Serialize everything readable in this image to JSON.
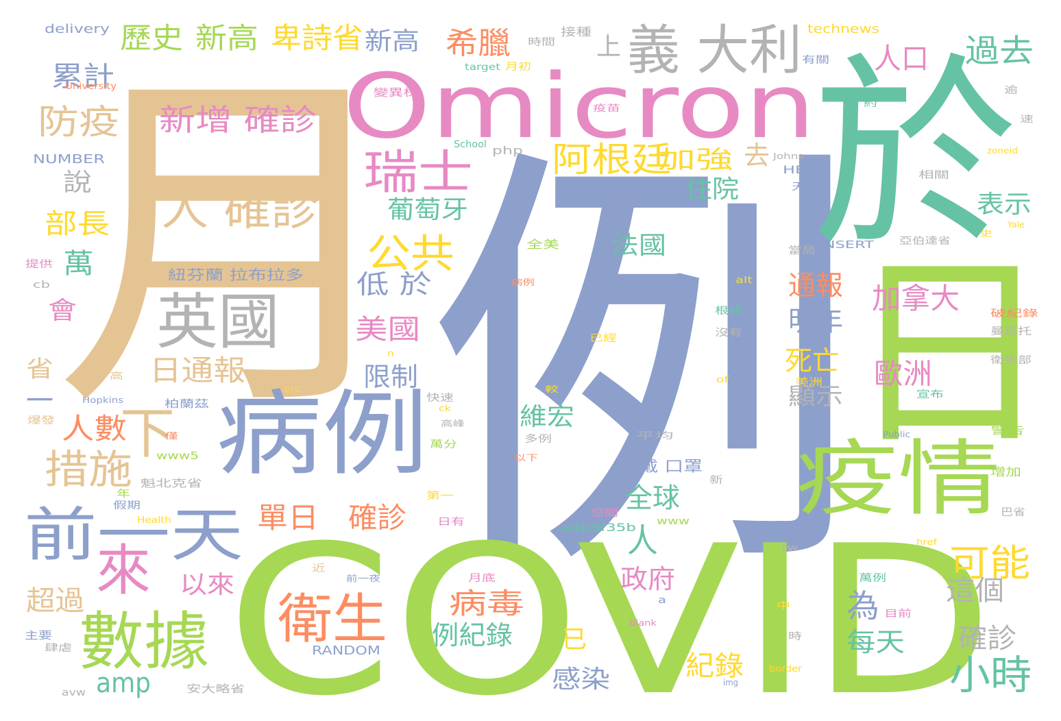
{
  "palette": {
    "blue": "#8da0cb",
    "green": "#a6d854",
    "tan": "#e5c494",
    "teal": "#66c2a5",
    "pink": "#e78ac3",
    "orange": "#fc8d62",
    "yellow": "#ffd92f",
    "gray": "#b3b3b3"
  },
  "words": [
    {
      "text": "例",
      "color": "blue"
    },
    {
      "text": "月",
      "color": "tan"
    },
    {
      "text": "COVID",
      "color": "green"
    },
    {
      "text": "於",
      "color": "teal"
    },
    {
      "text": "日",
      "color": "green"
    },
    {
      "text": "Omicron",
      "color": "pink"
    },
    {
      "text": "病例",
      "color": "blue"
    },
    {
      "text": "疫情",
      "color": "green"
    },
    {
      "text": "義 大利",
      "color": "gray"
    },
    {
      "text": "英國",
      "color": "gray"
    },
    {
      "text": "數據",
      "color": "green"
    },
    {
      "text": "衛生",
      "color": "orange"
    },
    {
      "text": "前一天",
      "color": "blue"
    },
    {
      "text": "來",
      "color": "pink"
    },
    {
      "text": "人 確診",
      "color": "tan"
    },
    {
      "text": "瑞士",
      "color": "pink"
    },
    {
      "text": "下",
      "color": "tan"
    },
    {
      "text": "措施",
      "color": "tan"
    },
    {
      "text": "新增 確診",
      "color": "pink"
    },
    {
      "text": "防疫",
      "color": "tan"
    },
    {
      "text": "公共",
      "color": "yellow"
    },
    {
      "text": "阿根廷",
      "color": "yellow"
    },
    {
      "text": "小時",
      "color": "teal"
    },
    {
      "text": "可能",
      "color": "yellow"
    },
    {
      "text": "加拿大",
      "color": "pink"
    },
    {
      "text": "歐洲",
      "color": "pink"
    },
    {
      "text": "人口",
      "color": "pink"
    },
    {
      "text": "過去",
      "color": "teal"
    },
    {
      "text": "希臘",
      "color": "orange"
    },
    {
      "text": "歷史",
      "color": "green"
    },
    {
      "text": "新高",
      "color": "green"
    },
    {
      "text": "卑詩省",
      "color": "yellow"
    },
    {
      "text": "新高",
      "color": "blue"
    },
    {
      "text": "累計",
      "color": "blue"
    },
    {
      "text": "日通報",
      "color": "tan"
    },
    {
      "text": "單日",
      "color": "orange"
    },
    {
      "text": "確診",
      "color": "orange"
    },
    {
      "text": "人數",
      "color": "orange"
    },
    {
      "text": "病毒",
      "color": "orange"
    },
    {
      "text": "例紀錄",
      "color": "teal"
    },
    {
      "text": "政府",
      "color": "pink"
    },
    {
      "text": "全球",
      "color": "teal"
    },
    {
      "text": "人",
      "color": "teal"
    },
    {
      "text": "紀錄",
      "color": "yellow"
    },
    {
      "text": "每天",
      "color": "teal"
    },
    {
      "text": "確診",
      "color": "gray"
    },
    {
      "text": "這個",
      "color": "gray"
    },
    {
      "text": "為",
      "color": "blue"
    },
    {
      "text": "死亡",
      "color": "yellow"
    },
    {
      "text": "明年",
      "color": "blue"
    },
    {
      "text": "通報",
      "color": "orange"
    },
    {
      "text": "表示",
      "color": "teal"
    },
    {
      "text": "部長",
      "color": "yellow"
    },
    {
      "text": "美國",
      "color": "pink"
    },
    {
      "text": "低 於",
      "color": "blue"
    },
    {
      "text": "限制",
      "color": "blue"
    },
    {
      "text": "葡萄牙",
      "color": "teal"
    },
    {
      "text": "住院",
      "color": "teal"
    },
    {
      "text": "加強",
      "color": "yellow"
    },
    {
      "text": "去",
      "color": "tan"
    },
    {
      "text": "上",
      "color": "gray"
    },
    {
      "text": "法國",
      "color": "teal"
    },
    {
      "text": "維宏",
      "color": "teal"
    },
    {
      "text": "感染",
      "color": "blue"
    },
    {
      "text": "已",
      "color": "yellow"
    },
    {
      "text": "以來",
      "color": "pink"
    },
    {
      "text": "amp",
      "color": "teal"
    },
    {
      "text": "超過",
      "color": "tan"
    },
    {
      "text": "顯示",
      "color": "gray"
    },
    {
      "text": "說",
      "color": "gray"
    },
    {
      "text": "萬",
      "color": "teal"
    },
    {
      "text": "會",
      "color": "pink"
    },
    {
      "text": "省",
      "color": "tan"
    },
    {
      "text": "一",
      "color": "blue"
    },
    {
      "text": "佩戴 口罩",
      "color": "blue"
    },
    {
      "text": "紐芬蘭 拉布拉多",
      "color": "blue"
    },
    {
      "text": "delivery",
      "color": "blue"
    },
    {
      "text": "NUMBER",
      "color": "blue"
    },
    {
      "text": "technews",
      "color": "yellow"
    },
    {
      "text": "時間",
      "color": "gray"
    },
    {
      "text": "接種",
      "color": "gray"
    },
    {
      "text": "有關",
      "color": "blue"
    },
    {
      "text": "月初",
      "color": "yellow"
    },
    {
      "text": "target",
      "color": "teal"
    },
    {
      "text": "University",
      "color": "orange"
    },
    {
      "text": "變異株",
      "color": "pink"
    },
    {
      "text": "疫苗",
      "color": "pink"
    },
    {
      "text": "School",
      "color": "teal"
    },
    {
      "text": "php",
      "color": "gray"
    },
    {
      "text": "Johns",
      "color": "gray"
    },
    {
      "text": "HERE",
      "color": "blue"
    },
    {
      "text": "相關",
      "color": "gray"
    },
    {
      "text": "INSERT",
      "color": "blue"
    },
    {
      "text": "亞伯達省",
      "color": "gray"
    },
    {
      "text": "全美",
      "color": "green"
    },
    {
      "text": "當局",
      "color": "gray"
    },
    {
      "text": "根據",
      "color": "teal"
    },
    {
      "text": "沒有",
      "color": "gray"
    },
    {
      "text": "已經",
      "color": "yellow"
    },
    {
      "text": "破紀錄",
      "color": "orange"
    },
    {
      "text": "曼尼托",
      "color": "gray"
    },
    {
      "text": "衛生部",
      "color": "gray"
    },
    {
      "text": "警告",
      "color": "green"
    },
    {
      "text": "增加",
      "color": "green"
    },
    {
      "text": "巴省",
      "color": "gray"
    },
    {
      "text": "宣布",
      "color": "teal"
    },
    {
      "text": "美洲",
      "color": "yellow"
    },
    {
      "text": "快速",
      "color": "gray"
    },
    {
      "text": "萬分",
      "color": "green"
    },
    {
      "text": "高峰",
      "color": "gray"
    },
    {
      "text": "多例",
      "color": "gray"
    },
    {
      "text": "平均",
      "color": "gray"
    },
    {
      "text": "空間",
      "color": "pink"
    },
    {
      "text": "a4b3f35b",
      "color": "teal"
    },
    {
      "text": "www",
      "color": "green"
    },
    {
      "text": "第一",
      "color": "yellow"
    },
    {
      "text": "日有",
      "color": "pink"
    },
    {
      "text": "年",
      "color": "green"
    },
    {
      "text": "假期",
      "color": "blue"
    },
    {
      "text": "Health",
      "color": "yellow"
    },
    {
      "text": "魁北克省",
      "color": "gray"
    },
    {
      "text": "www5",
      "color": "green"
    },
    {
      "text": "柏蘭茲",
      "color": "blue"
    },
    {
      "text": "Hopkins",
      "color": "blue"
    },
    {
      "text": "RANDOM",
      "color": "blue"
    },
    {
      "text": "月底",
      "color": "pink"
    },
    {
      "text": "萬例",
      "color": "teal"
    },
    {
      "text": "前一夜",
      "color": "blue"
    },
    {
      "text": "安大略省",
      "color": "gray"
    },
    {
      "text": "主要",
      "color": "blue"
    },
    {
      "text": "肆虐",
      "color": "gray"
    },
    {
      "text": "提供",
      "color": "pink"
    },
    {
      "text": "cb",
      "color": "gray"
    },
    {
      "text": "avw",
      "color": "gray"
    },
    {
      "text": "src",
      "color": "yellow"
    },
    {
      "text": "alt",
      "color": "yellow"
    },
    {
      "text": "tw",
      "color": "gray"
    },
    {
      "text": "a",
      "color": "blue"
    },
    {
      "text": "blank",
      "color": "pink"
    },
    {
      "text": "img",
      "color": "blue"
    },
    {
      "text": "border",
      "color": "yellow"
    },
    {
      "text": "href",
      "color": "yellow"
    },
    {
      "text": "Public",
      "color": "blue"
    },
    {
      "text": "Yale",
      "color": "yellow"
    },
    {
      "text": "zoneid",
      "color": "yellow"
    },
    {
      "text": "目前",
      "color": "pink"
    },
    {
      "text": "時",
      "color": "gray"
    },
    {
      "text": "新",
      "color": "gray"
    },
    {
      "text": "以下",
      "color": "orange"
    },
    {
      "text": "病例",
      "color": "orange"
    },
    {
      "text": "天",
      "color": "blue"
    },
    {
      "text": "近",
      "color": "tan"
    },
    {
      "text": "中",
      "color": "yellow"
    },
    {
      "text": "僅",
      "color": "orange"
    },
    {
      "text": "爆發",
      "color": "tan"
    },
    {
      "text": "高",
      "color": "tan"
    },
    {
      "text": "逾",
      "color": "gray"
    },
    {
      "text": "約",
      "color": "teal"
    },
    {
      "text": "速",
      "color": "gray"
    },
    {
      "text": "史",
      "color": "yellow"
    },
    {
      "text": "of",
      "color": "yellow"
    },
    {
      "text": "n",
      "color": "yellow"
    },
    {
      "text": "ck",
      "color": "yellow"
    },
    {
      "text": "較",
      "color": "yellow"
    }
  ]
}
